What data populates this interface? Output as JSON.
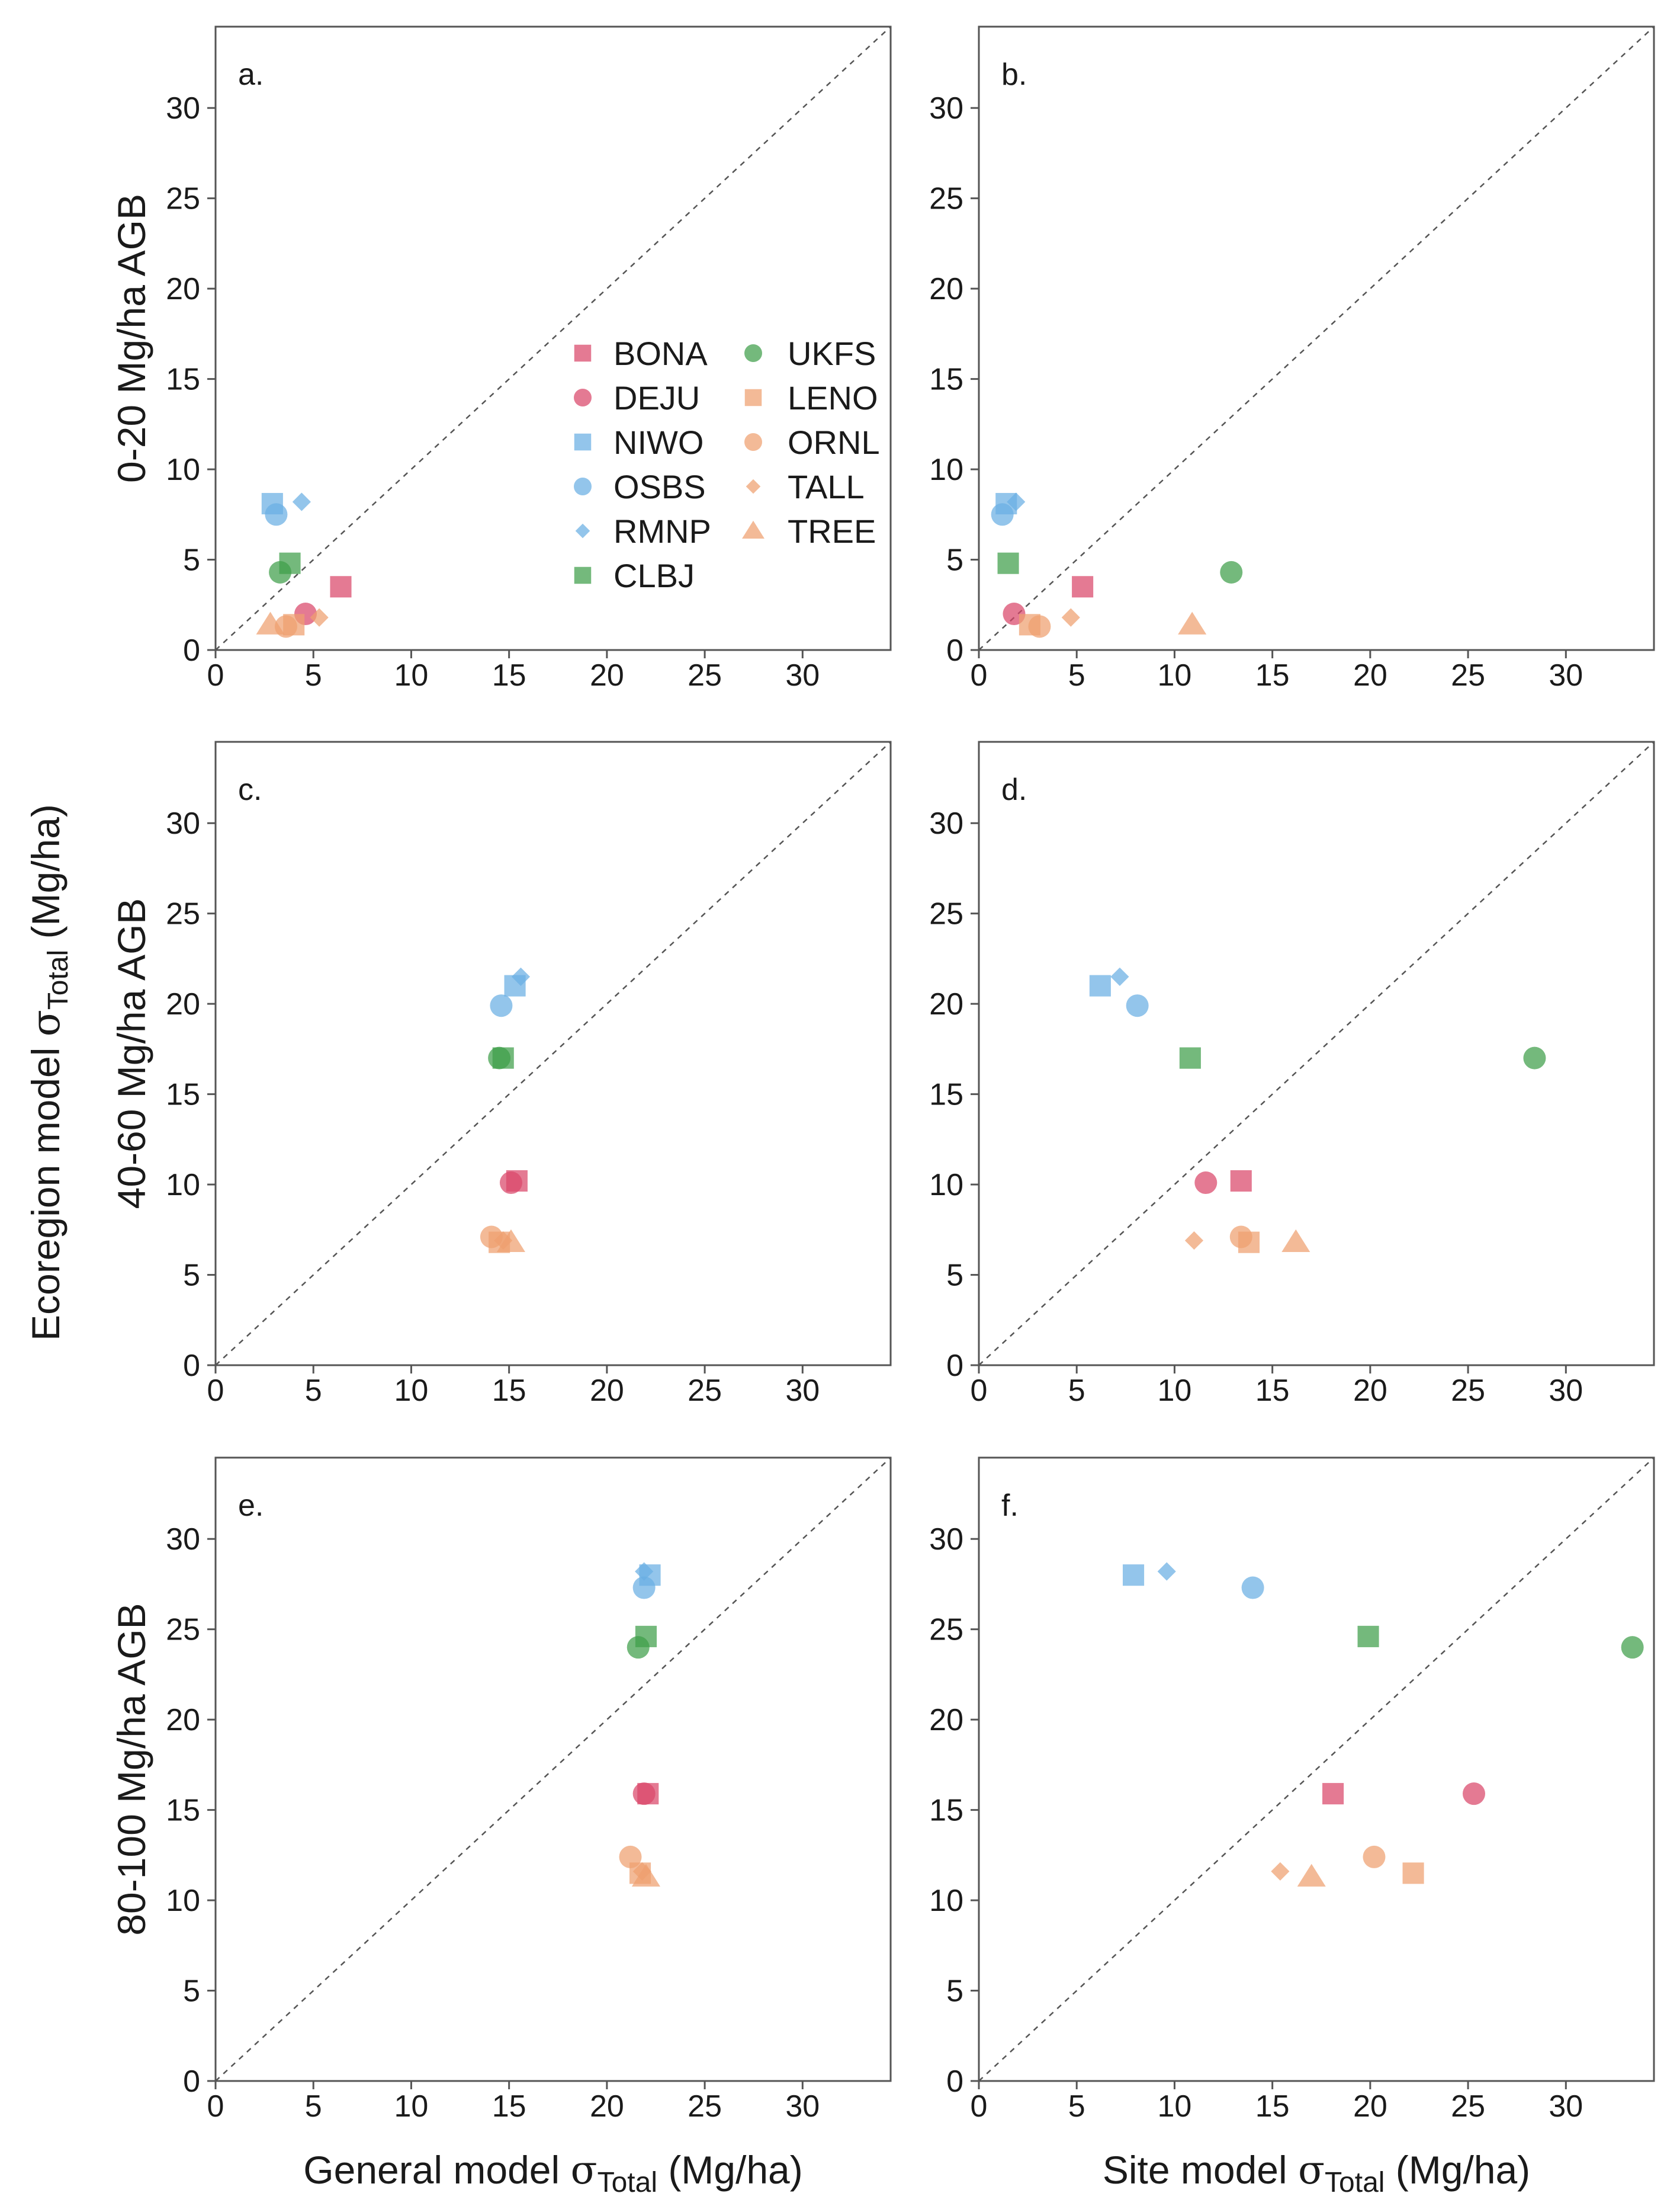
{
  "chart_data": {
    "type": "scatter",
    "title": "",
    "xlabel_left": {
      "prefix": "General model ",
      "sigma": "σ",
      "sub": "Total",
      "suffix": " (Mg/ha)"
    },
    "xlabel_right": {
      "prefix": "Site model ",
      "sigma": "σ",
      "sub": "Total",
      "suffix": " (Mg/ha)"
    },
    "ylabel": {
      "prefix": "Ecoregion model ",
      "sigma": "σ",
      "sub": "Total",
      "suffix": " (Mg/ha)"
    },
    "row_labels": [
      "0-20 Mg/ha AGB",
      "40-60 Mg/ha AGB",
      "80-100 Mg/ha AGB"
    ],
    "xlim": [
      0,
      34.5
    ],
    "ylim": [
      0,
      34.5
    ],
    "ticks": [
      0,
      5,
      10,
      15,
      20,
      25,
      30
    ],
    "reference_line": "1:1 dashed",
    "legend": [
      {
        "site": "BONA",
        "color": "#d9476a",
        "shape": "square"
      },
      {
        "site": "DEJU",
        "color": "#d9476a",
        "shape": "circle"
      },
      {
        "site": "NIWO",
        "color": "#6aaee3",
        "shape": "square"
      },
      {
        "site": "OSBS",
        "color": "#6aaee3",
        "shape": "circle"
      },
      {
        "site": "RMNP",
        "color": "#6aaee3",
        "shape": "diamond"
      },
      {
        "site": "CLBJ",
        "color": "#3f9e4a",
        "shape": "square"
      },
      {
        "site": "UKFS",
        "color": "#3f9e4a",
        "shape": "circle"
      },
      {
        "site": "LENO",
        "color": "#eea06f",
        "shape": "square"
      },
      {
        "site": "ORNL",
        "color": "#eea06f",
        "shape": "circle"
      },
      {
        "site": "TALL",
        "color": "#eea06f",
        "shape": "diamond"
      },
      {
        "site": "TREE",
        "color": "#eea06f",
        "shape": "triangle"
      }
    ],
    "panels": [
      {
        "letter": "a.",
        "row": 0,
        "col": 0,
        "points": [
          {
            "site": "BONA",
            "x": 6.4,
            "y": 3.5
          },
          {
            "site": "DEJU",
            "x": 4.6,
            "y": 2.0
          },
          {
            "site": "NIWO",
            "x": 2.9,
            "y": 8.1
          },
          {
            "site": "OSBS",
            "x": 3.1,
            "y": 7.5
          },
          {
            "site": "RMNP",
            "x": 4.4,
            "y": 8.2
          },
          {
            "site": "CLBJ",
            "x": 3.8,
            "y": 4.8
          },
          {
            "site": "UKFS",
            "x": 3.3,
            "y": 4.3
          },
          {
            "site": "LENO",
            "x": 4.0,
            "y": 1.4
          },
          {
            "site": "ORNL",
            "x": 3.6,
            "y": 1.3
          },
          {
            "site": "TALL",
            "x": 5.3,
            "y": 1.8
          },
          {
            "site": "TREE",
            "x": 2.8,
            "y": 1.4
          }
        ]
      },
      {
        "letter": "b.",
        "row": 0,
        "col": 1,
        "points": [
          {
            "site": "BONA",
            "x": 5.3,
            "y": 3.5
          },
          {
            "site": "DEJU",
            "x": 1.8,
            "y": 2.0
          },
          {
            "site": "NIWO",
            "x": 1.4,
            "y": 8.1
          },
          {
            "site": "OSBS",
            "x": 1.2,
            "y": 7.5
          },
          {
            "site": "RMNP",
            "x": 1.9,
            "y": 8.2
          },
          {
            "site": "CLBJ",
            "x": 1.5,
            "y": 4.8
          },
          {
            "site": "UKFS",
            "x": 12.9,
            "y": 4.3
          },
          {
            "site": "LENO",
            "x": 2.6,
            "y": 1.4
          },
          {
            "site": "ORNL",
            "x": 3.1,
            "y": 1.3
          },
          {
            "site": "TALL",
            "x": 4.7,
            "y": 1.8
          },
          {
            "site": "TREE",
            "x": 10.9,
            "y": 1.4
          }
        ]
      },
      {
        "letter": "c.",
        "row": 1,
        "col": 0,
        "points": [
          {
            "site": "BONA",
            "x": 15.4,
            "y": 10.2
          },
          {
            "site": "DEJU",
            "x": 15.1,
            "y": 10.1
          },
          {
            "site": "NIWO",
            "x": 15.3,
            "y": 21.0
          },
          {
            "site": "OSBS",
            "x": 14.6,
            "y": 19.9
          },
          {
            "site": "RMNP",
            "x": 15.6,
            "y": 21.5
          },
          {
            "site": "CLBJ",
            "x": 14.7,
            "y": 17.0
          },
          {
            "site": "UKFS",
            "x": 14.5,
            "y": 17.0
          },
          {
            "site": "LENO",
            "x": 14.5,
            "y": 6.8
          },
          {
            "site": "ORNL",
            "x": 14.1,
            "y": 7.1
          },
          {
            "site": "TALL",
            "x": 14.7,
            "y": 6.9
          },
          {
            "site": "TREE",
            "x": 15.1,
            "y": 6.8
          }
        ]
      },
      {
        "letter": "d.",
        "row": 1,
        "col": 1,
        "points": [
          {
            "site": "BONA",
            "x": 13.4,
            "y": 10.2
          },
          {
            "site": "DEJU",
            "x": 11.6,
            "y": 10.1
          },
          {
            "site": "NIWO",
            "x": 6.2,
            "y": 21.0
          },
          {
            "site": "OSBS",
            "x": 8.1,
            "y": 19.9
          },
          {
            "site": "RMNP",
            "x": 7.2,
            "y": 21.5
          },
          {
            "site": "CLBJ",
            "x": 10.8,
            "y": 17.0
          },
          {
            "site": "UKFS",
            "x": 28.4,
            "y": 17.0
          },
          {
            "site": "LENO",
            "x": 13.8,
            "y": 6.8
          },
          {
            "site": "ORNL",
            "x": 13.4,
            "y": 7.1
          },
          {
            "site": "TALL",
            "x": 11.0,
            "y": 6.9
          },
          {
            "site": "TREE",
            "x": 16.2,
            "y": 6.8
          }
        ]
      },
      {
        "letter": "e.",
        "row": 2,
        "col": 0,
        "points": [
          {
            "site": "BONA",
            "x": 22.1,
            "y": 15.9
          },
          {
            "site": "DEJU",
            "x": 21.9,
            "y": 15.9
          },
          {
            "site": "NIWO",
            "x": 22.2,
            "y": 28.0
          },
          {
            "site": "OSBS",
            "x": 21.9,
            "y": 27.3
          },
          {
            "site": "RMNP",
            "x": 21.9,
            "y": 28.2
          },
          {
            "site": "CLBJ",
            "x": 22.0,
            "y": 24.6
          },
          {
            "site": "UKFS",
            "x": 21.6,
            "y": 24.0
          },
          {
            "site": "LENO",
            "x": 21.7,
            "y": 11.5
          },
          {
            "site": "ORNL",
            "x": 21.2,
            "y": 12.4
          },
          {
            "site": "TALL",
            "x": 21.8,
            "y": 11.6
          },
          {
            "site": "TREE",
            "x": 22.0,
            "y": 11.3
          }
        ]
      },
      {
        "letter": "f.",
        "row": 2,
        "col": 1,
        "points": [
          {
            "site": "BONA",
            "x": 18.1,
            "y": 15.9
          },
          {
            "site": "DEJU",
            "x": 25.3,
            "y": 15.9
          },
          {
            "site": "NIWO",
            "x": 7.9,
            "y": 28.0
          },
          {
            "site": "OSBS",
            "x": 14.0,
            "y": 27.3
          },
          {
            "site": "RMNP",
            "x": 9.6,
            "y": 28.2
          },
          {
            "site": "CLBJ",
            "x": 19.9,
            "y": 24.6
          },
          {
            "site": "UKFS",
            "x": 33.4,
            "y": 24.0
          },
          {
            "site": "LENO",
            "x": 22.2,
            "y": 11.5
          },
          {
            "site": "ORNL",
            "x": 20.2,
            "y": 12.4
          },
          {
            "site": "TALL",
            "x": 15.4,
            "y": 11.6
          },
          {
            "site": "TREE",
            "x": 17.0,
            "y": 11.3
          }
        ]
      }
    ]
  }
}
